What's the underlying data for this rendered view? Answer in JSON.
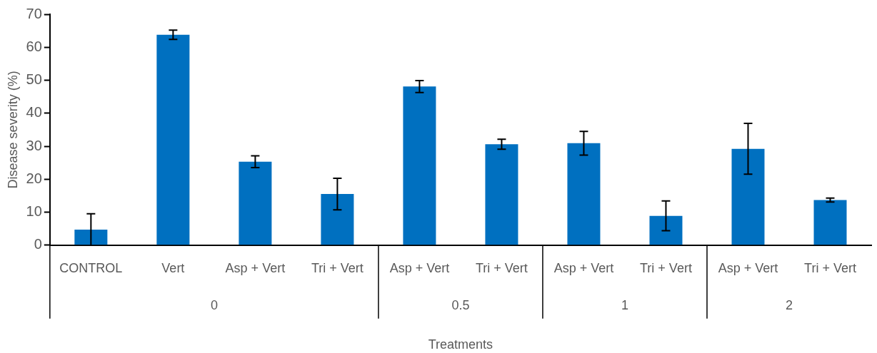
{
  "chart_data": {
    "type": "bar",
    "xlabel": "Treatments",
    "ylabel": "Disease severity (%)",
    "categories": [
      "CONTROL",
      "Vert",
      "Asp + Vert",
      "Tri + Vert",
      "Asp + Vert",
      "Tri + Vert",
      "Asp + Vert",
      "Tri + Vert",
      "Asp + Vert",
      "Tri + Vert"
    ],
    "values": [
      4.7,
      63.8,
      25.3,
      15.5,
      48.1,
      30.6,
      30.9,
      8.9,
      29.2,
      13.7
    ],
    "errors": [
      4.8,
      1.4,
      1.8,
      4.8,
      1.8,
      1.5,
      3.6,
      4.5,
      7.7,
      0.6
    ],
    "color": "#0070c0",
    "ylim": [
      0,
      70
    ],
    "yticks": [
      0,
      10,
      20,
      30,
      40,
      50,
      60,
      70
    ],
    "grid": false,
    "legend": false,
    "annotations": [
      "0",
      "0.5",
      "1",
      "2"
    ]
  }
}
